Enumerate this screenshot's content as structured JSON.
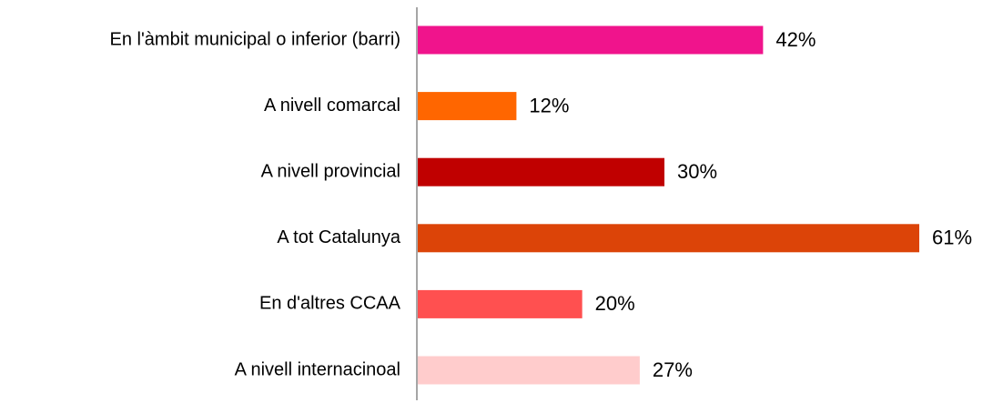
{
  "chart_data": {
    "type": "bar",
    "orientation": "horizontal",
    "categories": [
      "En l'àmbit municipal o inferior (barri)",
      "A nivell comarcal",
      "A nivell provincial",
      "A tot Catalunya",
      "En d'altres CCAA",
      "A nivell internacinoal"
    ],
    "values": [
      42,
      12,
      30,
      61,
      20,
      27
    ],
    "value_labels": [
      "42%",
      "12%",
      "30%",
      "61%",
      "20%",
      "27%"
    ],
    "colors": [
      "#f0148c",
      "#ff6600",
      "#c00000",
      "#dc4408",
      "#ff5050",
      "#ffcccc"
    ]
  }
}
